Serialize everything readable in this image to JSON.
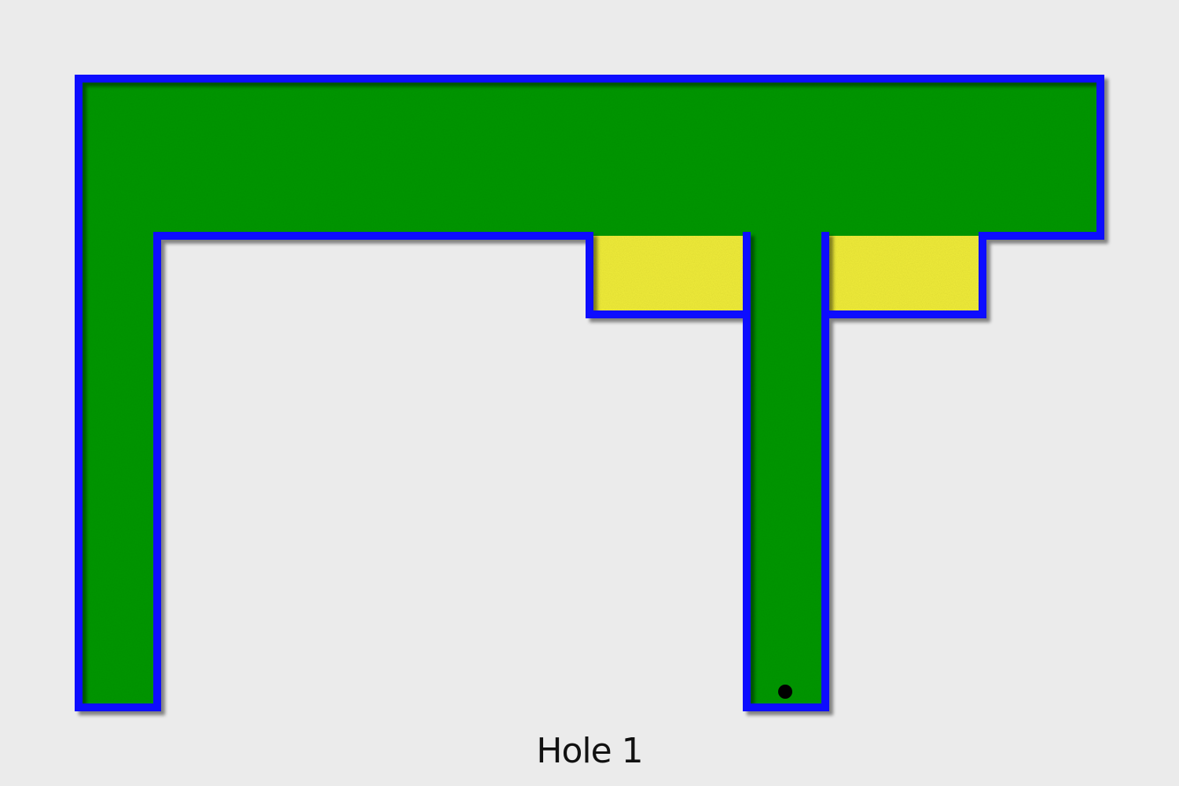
{
  "hole": {
    "label": "Hole 1"
  },
  "colors": {
    "background": "#ebebeb",
    "green": "#0a9a0a",
    "sand": "#f2ee3a",
    "wall": "#1010ff",
    "ball": "#000000"
  },
  "course": {
    "surface": "green",
    "hazards": [
      "sand",
      "sand"
    ],
    "ball": "golf-ball"
  }
}
